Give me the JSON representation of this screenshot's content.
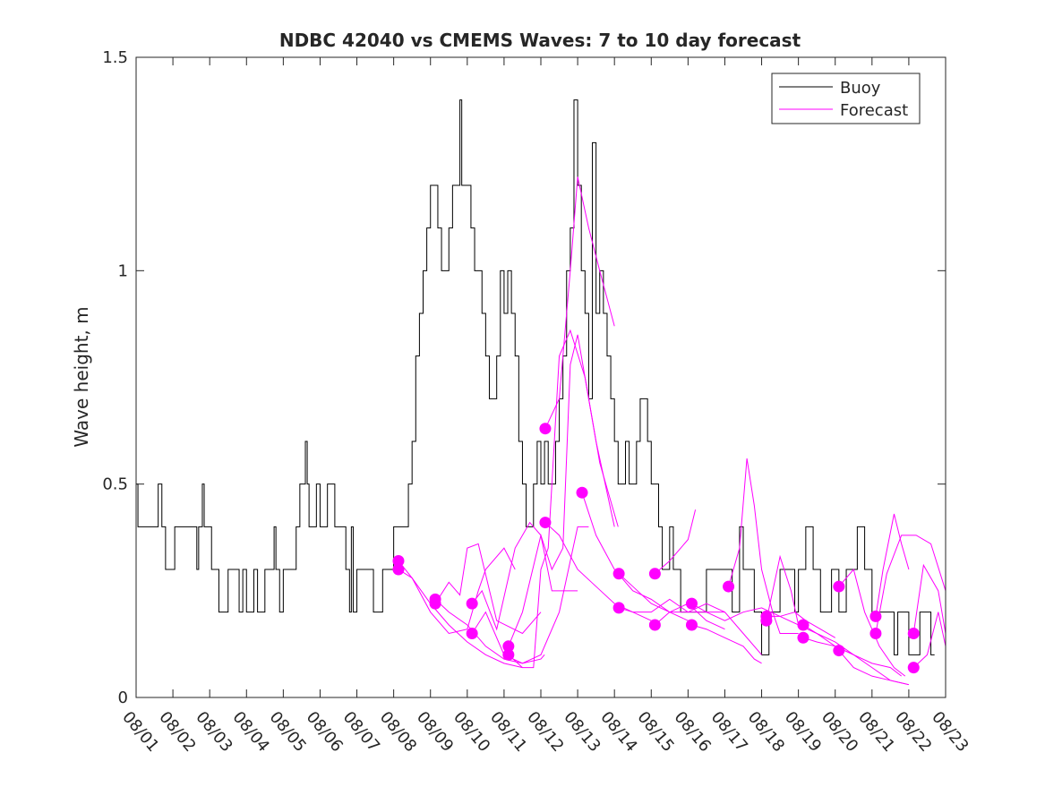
{
  "chart_data": {
    "type": "line",
    "title": "NDBC 42040 vs CMEMS Waves: 7 to 10 day forecast",
    "xlabel": "",
    "ylabel": "Wave height, m",
    "ylim": [
      0,
      1.5
    ],
    "xlim_days": [
      0,
      22
    ],
    "x_tick_labels": [
      "08/01",
      "08/02",
      "08/03",
      "08/04",
      "08/05",
      "08/06",
      "08/07",
      "08/08",
      "08/09",
      "08/10",
      "08/11",
      "08/12",
      "08/13",
      "08/14",
      "08/15",
      "08/16",
      "08/17",
      "08/18",
      "08/19",
      "08/20",
      "08/21",
      "08/22",
      "08/23"
    ],
    "y_ticks": [
      0,
      0.5,
      1,
      1.5
    ],
    "y_tick_labels": [
      "0",
      "0.5",
      "1",
      "1.5"
    ],
    "grid": false,
    "legend": {
      "placement": "top-right",
      "entries": [
        "Buoy",
        "Forecast"
      ]
    },
    "colors": {
      "buoy": "#000000",
      "forecast": "#ff00ff"
    },
    "buoy": [
      [
        0,
        0.5
      ],
      [
        0.05,
        0.4
      ],
      [
        0.55,
        0.4
      ],
      [
        0.6,
        0.5
      ],
      [
        0.7,
        0.4
      ],
      [
        0.8,
        0.3
      ],
      [
        1.05,
        0.4
      ],
      [
        1.6,
        0.4
      ],
      [
        1.65,
        0.3
      ],
      [
        1.7,
        0.4
      ],
      [
        1.8,
        0.5
      ],
      [
        1.85,
        0.4
      ],
      [
        2.05,
        0.3
      ],
      [
        2.25,
        0.2
      ],
      [
        2.5,
        0.3
      ],
      [
        2.8,
        0.2
      ],
      [
        2.9,
        0.3
      ],
      [
        3.0,
        0.2
      ],
      [
        3.2,
        0.3
      ],
      [
        3.3,
        0.2
      ],
      [
        3.5,
        0.3
      ],
      [
        3.75,
        0.4
      ],
      [
        3.8,
        0.3
      ],
      [
        3.9,
        0.2
      ],
      [
        4.0,
        0.3
      ],
      [
        4.35,
        0.4
      ],
      [
        4.45,
        0.5
      ],
      [
        4.6,
        0.6
      ],
      [
        4.65,
        0.5
      ],
      [
        4.7,
        0.4
      ],
      [
        4.9,
        0.5
      ],
      [
        5.0,
        0.4
      ],
      [
        5.2,
        0.5
      ],
      [
        5.4,
        0.4
      ],
      [
        5.7,
        0.3
      ],
      [
        5.8,
        0.2
      ],
      [
        5.85,
        0.4
      ],
      [
        5.9,
        0.2
      ],
      [
        6.0,
        0.3
      ],
      [
        6.45,
        0.2
      ],
      [
        6.7,
        0.3
      ],
      [
        7.0,
        0.4
      ],
      [
        7.4,
        0.5
      ],
      [
        7.5,
        0.6
      ],
      [
        7.6,
        0.8
      ],
      [
        7.7,
        0.9
      ],
      [
        7.8,
        1.0
      ],
      [
        7.9,
        1.1
      ],
      [
        8.0,
        1.2
      ],
      [
        8.2,
        1.1
      ],
      [
        8.3,
        1.0
      ],
      [
        8.5,
        1.1
      ],
      [
        8.6,
        1.2
      ],
      [
        8.8,
        1.4
      ],
      [
        8.85,
        1.2
      ],
      [
        9.1,
        1.1
      ],
      [
        9.2,
        1.0
      ],
      [
        9.4,
        0.9
      ],
      [
        9.5,
        0.8
      ],
      [
        9.6,
        0.7
      ],
      [
        9.8,
        0.8
      ],
      [
        9.9,
        1.0
      ],
      [
        10.0,
        0.9
      ],
      [
        10.1,
        1.0
      ],
      [
        10.2,
        0.9
      ],
      [
        10.3,
        0.8
      ],
      [
        10.4,
        0.6
      ],
      [
        10.5,
        0.5
      ],
      [
        10.6,
        0.4
      ],
      [
        10.8,
        0.5
      ],
      [
        10.9,
        0.6
      ],
      [
        11.0,
        0.5
      ],
      [
        11.1,
        0.6
      ],
      [
        11.2,
        0.5
      ],
      [
        11.4,
        0.6
      ],
      [
        11.5,
        0.7
      ],
      [
        11.6,
        0.8
      ],
      [
        11.7,
        1.0
      ],
      [
        11.8,
        1.1
      ],
      [
        11.9,
        1.4
      ],
      [
        12.0,
        1.2
      ],
      [
        12.1,
        1.0
      ],
      [
        12.2,
        0.9
      ],
      [
        12.3,
        0.7
      ],
      [
        12.4,
        1.3
      ],
      [
        12.5,
        0.9
      ],
      [
        12.6,
        1.0
      ],
      [
        12.7,
        0.9
      ],
      [
        12.8,
        0.8
      ],
      [
        12.9,
        0.7
      ],
      [
        13.0,
        0.6
      ],
      [
        13.1,
        0.5
      ],
      [
        13.3,
        0.6
      ],
      [
        13.4,
        0.5
      ],
      [
        13.6,
        0.6
      ],
      [
        13.7,
        0.7
      ],
      [
        13.9,
        0.6
      ],
      [
        14.0,
        0.5
      ],
      [
        14.2,
        0.4
      ],
      [
        14.3,
        0.3
      ],
      [
        14.5,
        0.4
      ],
      [
        14.6,
        0.3
      ],
      [
        14.8,
        0.2
      ],
      [
        15.5,
        0.3
      ],
      [
        16.2,
        0.2
      ],
      [
        16.4,
        0.4
      ],
      [
        16.5,
        0.3
      ],
      [
        16.8,
        0.2
      ],
      [
        17.0,
        0.1
      ],
      [
        17.2,
        0.2
      ],
      [
        17.5,
        0.3
      ],
      [
        17.9,
        0.2
      ],
      [
        18.0,
        0.3
      ],
      [
        18.2,
        0.4
      ],
      [
        18.4,
        0.3
      ],
      [
        18.6,
        0.2
      ],
      [
        18.9,
        0.3
      ],
      [
        19.1,
        0.2
      ],
      [
        19.3,
        0.3
      ],
      [
        19.6,
        0.4
      ],
      [
        19.8,
        0.3
      ],
      [
        20.0,
        0.2
      ],
      [
        20.6,
        0.1
      ],
      [
        20.7,
        0.2
      ],
      [
        21.0,
        0.1
      ],
      [
        21.3,
        0.2
      ],
      [
        21.6,
        0.1
      ],
      [
        21.7,
        0.1
      ]
    ],
    "forecasts": [
      [
        [
          7.13,
          0.32
        ],
        [
          7.5,
          0.28
        ],
        [
          8,
          0.22
        ],
        [
          8.5,
          0.17
        ],
        [
          9,
          0.13
        ],
        [
          9.5,
          0.1
        ],
        [
          10,
          0.08
        ],
        [
          10.5,
          0.07
        ]
      ],
      [
        [
          7.13,
          0.3
        ],
        [
          7.5,
          0.28
        ],
        [
          8,
          0.2
        ],
        [
          8.5,
          0.15
        ],
        [
          9,
          0.16
        ],
        [
          9.3,
          0.25
        ],
        [
          9.5,
          0.3
        ],
        [
          10,
          0.35
        ],
        [
          10.3,
          0.3
        ]
      ],
      [
        [
          8.13,
          0.23
        ],
        [
          8.5,
          0.2
        ],
        [
          9,
          0.17
        ],
        [
          9.5,
          0.12
        ],
        [
          10,
          0.09
        ],
        [
          10.5,
          0.08
        ],
        [
          11,
          0.09
        ],
        [
          11.1,
          0.1
        ]
      ],
      [
        [
          8.13,
          0.22
        ],
        [
          8.5,
          0.27
        ],
        [
          8.8,
          0.24
        ],
        [
          9.0,
          0.35
        ],
        [
          9.3,
          0.36
        ],
        [
          9.8,
          0.18
        ],
        [
          10.5,
          0.15
        ],
        [
          11,
          0.2
        ]
      ],
      [
        [
          9.13,
          0.22
        ],
        [
          9.4,
          0.25
        ],
        [
          9.8,
          0.16
        ],
        [
          10.3,
          0.35
        ],
        [
          10.7,
          0.41
        ],
        [
          11,
          0.38
        ],
        [
          11.3,
          0.25
        ],
        [
          12,
          0.25
        ]
      ],
      [
        [
          9.13,
          0.15
        ],
        [
          9.5,
          0.2
        ],
        [
          10,
          0.1
        ],
        [
          10.5,
          0.08
        ],
        [
          11,
          0.1
        ],
        [
          11.5,
          0.2
        ],
        [
          12,
          0.4
        ],
        [
          12.3,
          0.4
        ]
      ],
      [
        [
          10.12,
          0.12
        ],
        [
          10.5,
          0.2
        ],
        [
          11,
          0.38
        ],
        [
          11.3,
          0.3
        ],
        [
          11.6,
          0.35
        ],
        [
          11.8,
          0.78
        ],
        [
          12.0,
          0.85
        ],
        [
          12.5,
          0.6
        ],
        [
          13,
          0.4
        ]
      ],
      [
        [
          10.12,
          0.1
        ],
        [
          10.5,
          0.07
        ],
        [
          10.8,
          0.07
        ],
        [
          11,
          0.3
        ],
        [
          11.2,
          0.35
        ],
        [
          11.5,
          0.8
        ],
        [
          11.8,
          0.86
        ],
        [
          12.2,
          0.75
        ],
        [
          12.6,
          0.55
        ],
        [
          13.1,
          0.4
        ]
      ],
      [
        [
          11.12,
          0.63
        ],
        [
          11.5,
          0.7
        ],
        [
          11.8,
          1.0
        ],
        [
          12.0,
          1.22
        ],
        [
          12.3,
          1.1
        ],
        [
          12.6,
          1.0
        ],
        [
          13.0,
          0.87
        ]
      ],
      [
        [
          11.12,
          0.41
        ],
        [
          11.5,
          0.38
        ],
        [
          12,
          0.3
        ],
        [
          12.5,
          0.26
        ],
        [
          13,
          0.22
        ],
        [
          13.5,
          0.2
        ],
        [
          14,
          0.18
        ]
      ],
      [
        [
          12.12,
          0.48
        ],
        [
          12.5,
          0.38
        ],
        [
          13,
          0.3
        ],
        [
          13.5,
          0.25
        ],
        [
          14,
          0.23
        ],
        [
          14.5,
          0.2
        ],
        [
          15,
          0.18
        ]
      ],
      [
        [
          13.12,
          0.29
        ],
        [
          13.5,
          0.26
        ],
        [
          14,
          0.22
        ],
        [
          14.5,
          0.2
        ],
        [
          15,
          0.22
        ],
        [
          15.5,
          0.18
        ],
        [
          16,
          0.16
        ]
      ],
      [
        [
          13.12,
          0.21
        ],
        [
          13.5,
          0.2
        ],
        [
          14,
          0.2
        ],
        [
          14.5,
          0.23
        ],
        [
          15,
          0.2
        ],
        [
          15.5,
          0.2
        ],
        [
          16,
          0.2
        ]
      ],
      [
        [
          14.1,
          0.29
        ],
        [
          14.5,
          0.32
        ],
        [
          15,
          0.37
        ],
        [
          15.2,
          0.44
        ]
      ],
      [
        [
          14.1,
          0.17
        ],
        [
          14.5,
          0.2
        ],
        [
          15,
          0.2
        ],
        [
          15.5,
          0.22
        ],
        [
          16,
          0.2
        ],
        [
          16.5,
          0.15
        ],
        [
          17,
          0.1
        ]
      ],
      [
        [
          15.1,
          0.22
        ],
        [
          15.5,
          0.2
        ],
        [
          16,
          0.18
        ],
        [
          16.5,
          0.2
        ],
        [
          17,
          0.21
        ],
        [
          17.5,
          0.19
        ],
        [
          18,
          0.17
        ]
      ],
      [
        [
          15.1,
          0.17
        ],
        [
          15.5,
          0.16
        ],
        [
          16,
          0.14
        ],
        [
          16.5,
          0.12
        ],
        [
          16.8,
          0.09
        ],
        [
          17,
          0.08
        ]
      ],
      [
        [
          16.1,
          0.26
        ],
        [
          16.4,
          0.35
        ],
        [
          16.6,
          0.56
        ],
        [
          16.8,
          0.45
        ],
        [
          17,
          0.3
        ],
        [
          17.3,
          0.2
        ],
        [
          17.5,
          0.15
        ],
        [
          18,
          0.15
        ]
      ],
      [
        [
          17.13,
          0.19
        ],
        [
          17.5,
          0.19
        ],
        [
          17.9,
          0.2
        ],
        [
          18.2,
          0.18
        ],
        [
          18.6,
          0.16
        ],
        [
          19,
          0.14
        ]
      ],
      [
        [
          17.13,
          0.18
        ],
        [
          17.5,
          0.33
        ],
        [
          17.8,
          0.25
        ],
        [
          18,
          0.17
        ],
        [
          18.5,
          0.15
        ],
        [
          19,
          0.13
        ],
        [
          19.5,
          0.1
        ]
      ],
      [
        [
          18.13,
          0.17
        ],
        [
          18.5,
          0.15
        ],
        [
          19,
          0.12
        ],
        [
          19.5,
          0.1
        ],
        [
          20,
          0.07
        ],
        [
          20.5,
          0.04
        ],
        [
          21,
          0.03
        ]
      ],
      [
        [
          18.13,
          0.14
        ],
        [
          18.5,
          0.13
        ],
        [
          19,
          0.12
        ],
        [
          19.5,
          0.1
        ],
        [
          20,
          0.08
        ],
        [
          20.5,
          0.07
        ],
        [
          20.8,
          0.05
        ]
      ],
      [
        [
          19.1,
          0.26
        ],
        [
          19.5,
          0.3
        ],
        [
          19.8,
          0.2
        ],
        [
          20.2,
          0.12
        ],
        [
          20.6,
          0.07
        ],
        [
          20.9,
          0.05
        ]
      ],
      [
        [
          19.1,
          0.11
        ],
        [
          19.5,
          0.07
        ],
        [
          20,
          0.05
        ],
        [
          20.5,
          0.04
        ],
        [
          21,
          0.03
        ]
      ],
      [
        [
          20.1,
          0.19
        ],
        [
          20.3,
          0.3
        ],
        [
          20.6,
          0.43
        ],
        [
          20.8,
          0.36
        ],
        [
          21,
          0.3
        ]
      ],
      [
        [
          20.1,
          0.15
        ],
        [
          20.4,
          0.29
        ],
        [
          20.8,
          0.38
        ],
        [
          21.2,
          0.38
        ],
        [
          21.6,
          0.36
        ],
        [
          22,
          0.25
        ]
      ],
      [
        [
          21.13,
          0.15
        ],
        [
          21.4,
          0.31
        ],
        [
          21.8,
          0.25
        ],
        [
          22,
          0.15
        ]
      ],
      [
        [
          21.13,
          0.07
        ],
        [
          21.5,
          0.1
        ],
        [
          21.8,
          0.2
        ],
        [
          22,
          0.12
        ]
      ]
    ]
  }
}
